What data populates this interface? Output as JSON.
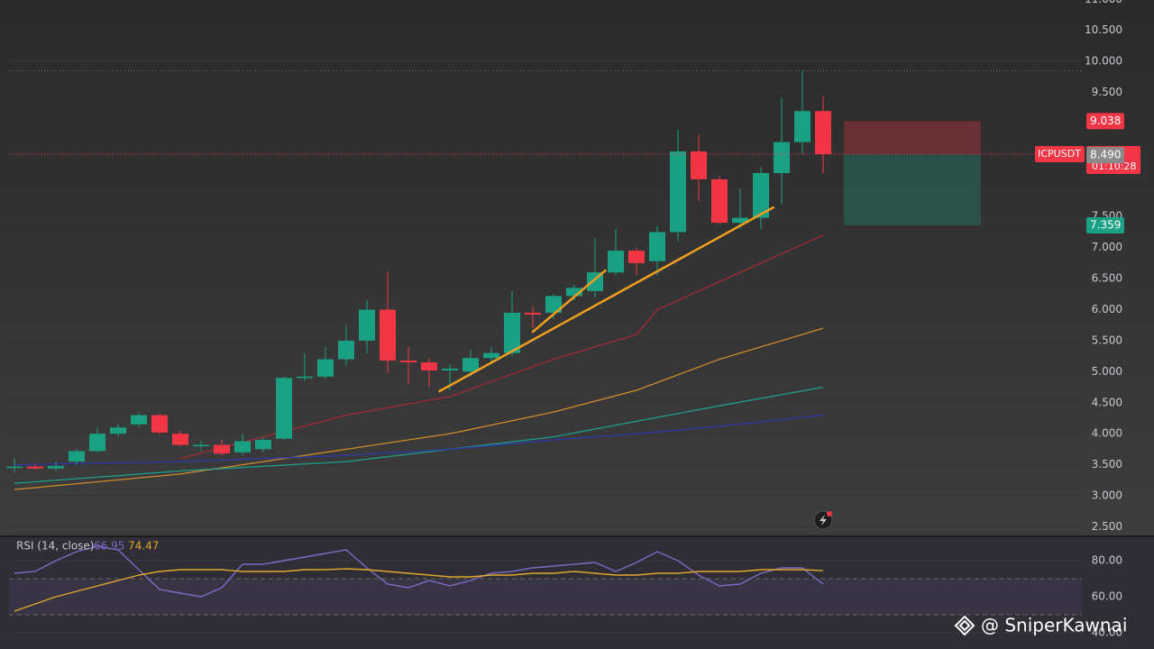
{
  "chart_data": [
    {
      "type": "candlestick",
      "symbol": "ICPUSDT",
      "countdown": "01:10:28",
      "up_color": "#1aa082",
      "down_color": "#f23645",
      "open": [
        3.45,
        3.47,
        3.44,
        3.55,
        3.72,
        4.0,
        4.15,
        4.3,
        4.0,
        3.8,
        3.82,
        3.7,
        3.75,
        3.92,
        4.9,
        4.92,
        5.2,
        5.5,
        6.0,
        5.18,
        5.15,
        5.02,
        5.0,
        5.22,
        5.3,
        5.95,
        5.95,
        6.22,
        6.3,
        6.6,
        6.95,
        6.78,
        7.25,
        8.55,
        8.1,
        7.4,
        7.48,
        8.2,
        8.7,
        9.2
      ],
      "high": [
        3.6,
        3.52,
        3.55,
        3.75,
        4.1,
        4.15,
        4.35,
        4.32,
        4.05,
        3.88,
        3.9,
        4.0,
        3.95,
        4.92,
        5.3,
        5.4,
        5.75,
        6.15,
        6.62,
        5.4,
        5.22,
        5.12,
        5.35,
        5.4,
        6.3,
        6.05,
        6.25,
        6.4,
        7.15,
        7.3,
        7.0,
        7.35,
        8.9,
        8.82,
        8.15,
        7.95,
        8.3,
        9.42,
        9.85,
        9.45
      ],
      "low": [
        3.38,
        3.42,
        3.4,
        3.5,
        3.7,
        3.95,
        4.1,
        3.98,
        3.8,
        3.72,
        3.65,
        3.65,
        3.7,
        3.9,
        4.85,
        4.88,
        5.1,
        5.3,
        4.98,
        4.8,
        4.75,
        4.7,
        4.92,
        5.15,
        5.25,
        5.7,
        5.85,
        6.15,
        6.2,
        6.55,
        6.55,
        6.55,
        7.1,
        7.75,
        7.38,
        7.3,
        7.3,
        7.7,
        8.5,
        8.2
      ],
      "close": [
        3.47,
        3.44,
        3.48,
        3.72,
        4.0,
        4.1,
        4.3,
        4.02,
        3.82,
        3.82,
        3.68,
        3.88,
        3.9,
        4.9,
        4.92,
        5.2,
        5.5,
        6.0,
        5.18,
        5.15,
        5.02,
        5.05,
        5.22,
        5.3,
        5.95,
        5.92,
        6.22,
        6.35,
        6.6,
        6.95,
        6.75,
        7.25,
        8.55,
        8.1,
        7.4,
        7.48,
        8.2,
        8.7,
        9.2,
        8.506
      ],
      "ylim": [
        2.39,
        10.99
      ],
      "yticks": [
        {
          "value": 2.5,
          "label": "2.500"
        },
        {
          "value": 3,
          "label": "3.000"
        },
        {
          "value": 3.5,
          "label": "3.500"
        },
        {
          "value": 4,
          "label": "4.000"
        },
        {
          "value": 4.5,
          "label": "4.500"
        },
        {
          "value": 5,
          "label": "5.000"
        },
        {
          "value": 5.5,
          "label": "5.500"
        },
        {
          "value": 6,
          "label": "6.000"
        },
        {
          "value": 6.5,
          "label": "6.500"
        },
        {
          "value": 7,
          "label": "7.000"
        },
        {
          "value": 7.5,
          "label": "7.500"
        },
        {
          "value": 9.5,
          "label": "9.500"
        },
        {
          "value": 10,
          "label": "10.000"
        },
        {
          "value": 10.5,
          "label": "10.500"
        },
        {
          "value": 11,
          "label": "11.000"
        }
      ],
      "grid": true,
      "moving_averages": [
        {
          "color": "#a32a33",
          "x": [
            8,
            16,
            21,
            26,
            30,
            31,
            34,
            39
          ],
          "values": [
            3.6,
            4.3,
            4.6,
            5.2,
            5.6,
            6.0,
            6.45,
            7.2
          ]
        },
        {
          "color": "#d08a2e",
          "x": [
            0,
            8,
            16,
            21,
            26,
            30,
            34,
            39
          ],
          "values": [
            3.1,
            3.35,
            3.75,
            4.0,
            4.35,
            4.7,
            5.2,
            5.7
          ]
        },
        {
          "color": "#1f9e8a",
          "x": [
            0,
            8,
            16,
            21,
            26,
            30,
            34,
            39
          ],
          "values": [
            3.2,
            3.4,
            3.55,
            3.75,
            3.95,
            4.2,
            4.45,
            4.75
          ]
        },
        {
          "color": "#2b3aa8",
          "x": [
            0,
            8,
            16,
            21,
            26,
            30,
            34,
            39
          ],
          "values": [
            3.5,
            3.55,
            3.65,
            3.75,
            3.9,
            4.0,
            4.12,
            4.3
          ]
        }
      ],
      "trendlines": [
        {
          "color": "#f0a020",
          "x": [
            20.5,
            36.6
          ],
          "values": [
            4.685,
            7.647
          ]
        },
        {
          "color": "#f0a020",
          "x": [
            25,
            28.5
          ],
          "values": [
            5.643,
            6.631
          ]
        }
      ],
      "position": {
        "x": [
          40,
          46.6
        ],
        "top": 9.038,
        "entry": 8.506,
        "bottom": 7.359
      },
      "bid": {
        "value": 8.49,
        "label": "8.490"
      }
    },
    {
      "type": "line",
      "title": "RSI (14, close)",
      "ylim": [
        31,
        92.5
      ],
      "yticks": [
        {
          "value": 40,
          "label": "40.00"
        },
        {
          "value": 60,
          "label": "60.00"
        },
        {
          "value": 80,
          "label": "80.00"
        }
      ],
      "bands": [
        70,
        50
      ],
      "series": [
        {
          "color": "#7e6bc4",
          "values": [
            73,
            74,
            80,
            85,
            88,
            86,
            75,
            64,
            62,
            60,
            65,
            78,
            78,
            80,
            82,
            84,
            86,
            76,
            67,
            65,
            69,
            66,
            69,
            73,
            74,
            76,
            77,
            78,
            79,
            74,
            79,
            85,
            80,
            72,
            66,
            67,
            73,
            76,
            76,
            66.95
          ]
        },
        {
          "color": "#e0a82e",
          "values": [
            52,
            56,
            60,
            63,
            66,
            69,
            72,
            74,
            75,
            75,
            75,
            74,
            74,
            74,
            75,
            75,
            75.5,
            75,
            74,
            73,
            72,
            71,
            71,
            72,
            72,
            73,
            73,
            74,
            73,
            72,
            72,
            73,
            73,
            74,
            74,
            74,
            75,
            75,
            75,
            74.47
          ]
        }
      ]
    }
  ],
  "watermark": "@ SniperKawnai"
}
